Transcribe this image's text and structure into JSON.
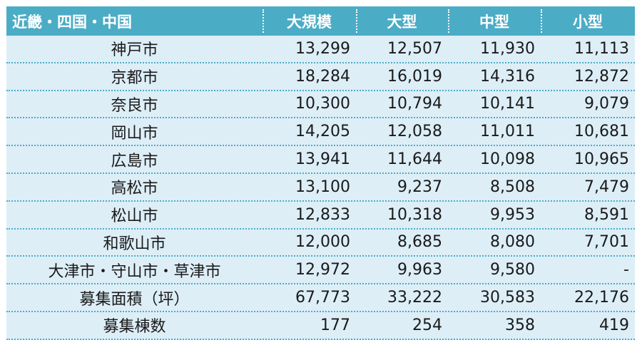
{
  "header": [
    "近畿・四国・中国",
    "大規模",
    "大型",
    "中型",
    "小型"
  ],
  "rows": [
    {
      "name": "神戸市",
      "v": [
        "13,299",
        "12,507",
        "11,930",
        "11,113"
      ]
    },
    {
      "name": "京都市",
      "v": [
        "18,284",
        "16,019",
        "14,316",
        "12,872"
      ]
    },
    {
      "name": "奈良市",
      "v": [
        "10,300",
        "10,794",
        "10,141",
        "9,079"
      ]
    },
    {
      "name": "岡山市",
      "v": [
        "14,205",
        "12,058",
        "11,011",
        "10,681"
      ]
    },
    {
      "name": "広島市",
      "v": [
        "13,941",
        "11,644",
        "10,098",
        "10,965"
      ]
    },
    {
      "name": "高松市",
      "v": [
        "13,100",
        "9,237",
        "8,508",
        "7,479"
      ]
    },
    {
      "name": "松山市",
      "v": [
        "12,833",
        "10,318",
        "9,953",
        "8,591"
      ]
    },
    {
      "name": "和歌山市",
      "v": [
        "12,000",
        "8,685",
        "8,080",
        "7,701"
      ]
    },
    {
      "name": "大津市・守山市・草津市",
      "v": [
        "12,972",
        "9,963",
        "9,580",
        "-"
      ]
    },
    {
      "name": "募集面積（坪）",
      "v": [
        "67,773",
        "33,222",
        "30,583",
        "22,176"
      ]
    },
    {
      "name": "募集棟数",
      "v": [
        "177",
        "254",
        "358",
        "419"
      ]
    }
  ],
  "colors": {
    "header_bg": "#4bacc6",
    "row_bg": "#ddeef7",
    "divider": "#4bacc6"
  }
}
